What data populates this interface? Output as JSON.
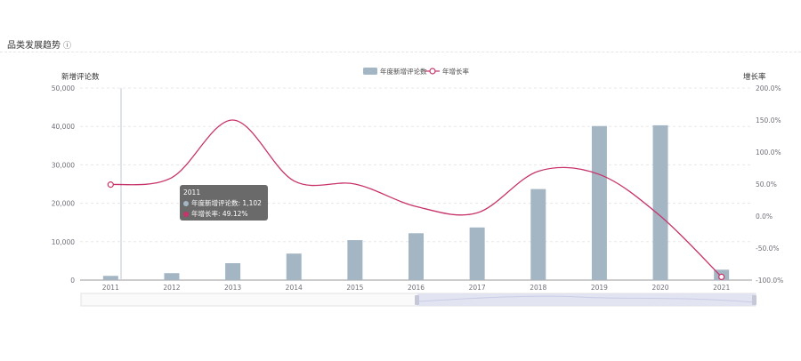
{
  "section": {
    "title": "品类发展趋势",
    "help_icon": "question-circle-icon"
  },
  "chart_data": {
    "type": "bar",
    "categories": [
      "2011",
      "2012",
      "2013",
      "2014",
      "2015",
      "2016",
      "2017",
      "2018",
      "2019",
      "2020",
      "2021"
    ],
    "series": [
      {
        "name": "年度新增评论数",
        "type": "bar",
        "axis": "left",
        "values": [
          1102,
          1800,
          4400,
          6900,
          10400,
          12200,
          13700,
          23700,
          40100,
          40300,
          2700
        ],
        "color": "#a4b6c3"
      },
      {
        "name": "年增长率",
        "type": "line",
        "axis": "right",
        "values": [
          49.12,
          60,
          150,
          55,
          50,
          15,
          5,
          70,
          65,
          0,
          -95
        ],
        "color": "#c7336a"
      }
    ],
    "y_left": {
      "label": "新增评论数",
      "min": 0,
      "max": 50000,
      "ticks": [
        "0",
        "10,000",
        "20,000",
        "30,000",
        "40,000",
        "50,000"
      ]
    },
    "y_right": {
      "label": "增长率",
      "min": -100,
      "max": 200,
      "ticks": [
        "-100.0%",
        "-50.0%",
        "0.0%",
        "50.0%",
        "100.0%",
        "150.0%",
        "200.0%"
      ]
    },
    "legend": {
      "position": "top-center"
    },
    "grid": true,
    "tooltip": {
      "title": "2011",
      "rows": [
        "年度新增评论数: 1,102",
        "年增长率: 49.12%"
      ]
    }
  }
}
